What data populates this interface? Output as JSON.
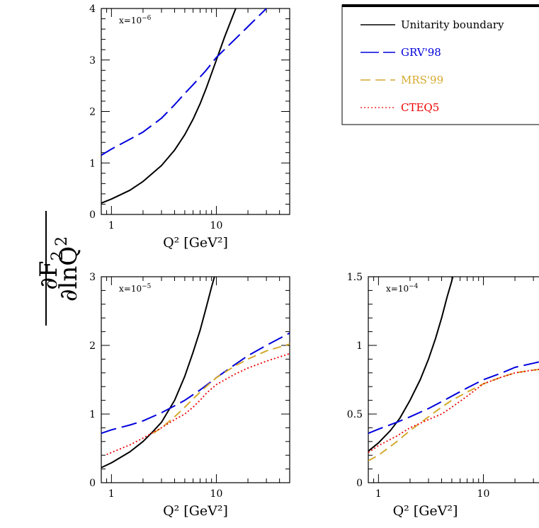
{
  "ylabel": {
    "numerator": "∂F",
    "numerator_sub": "2",
    "denominator": "∂lnQ",
    "denominator_sup": "2"
  },
  "legend": {
    "items": [
      {
        "label": "Unitarity boundary",
        "color": "#000000",
        "style": "solid"
      },
      {
        "label": "GRV'98",
        "color": "#0000dd",
        "style": "longdash"
      },
      {
        "label": "MRS'99",
        "color": "#d4aa30",
        "style": "dash"
      },
      {
        "label": "CTEQ5",
        "color": "#ee0000",
        "style": "dot"
      }
    ]
  },
  "chart_data": [
    {
      "type": "line",
      "panel_label": "x=10",
      "panel_label_exp": "−6",
      "xlabel": "Q² [GeV²]",
      "xscale": "log",
      "xlim": [
        0.8,
        50
      ],
      "ylim": [
        0,
        4
      ],
      "xticks": [
        {
          "v": 1,
          "label": "1"
        },
        {
          "v": 10,
          "label": "10"
        }
      ],
      "yticks": [
        {
          "v": 0,
          "label": "0"
        },
        {
          "v": 1,
          "label": "1"
        },
        {
          "v": 2,
          "label": "2"
        },
        {
          "v": 3,
          "label": "3"
        },
        {
          "v": 4,
          "label": "4"
        }
      ],
      "series": [
        {
          "name": "Unitarity boundary",
          "x": [
            0.8,
            1.0,
            1.5,
            2.0,
            3.0,
            4.0,
            5.0,
            6.0,
            7.0,
            8.0,
            10.0,
            12.0,
            14.0,
            16.0,
            18.0
          ],
          "y": [
            0.22,
            0.3,
            0.47,
            0.64,
            0.95,
            1.25,
            1.55,
            1.85,
            2.15,
            2.45,
            3.0,
            3.45,
            3.8,
            4.1,
            4.4
          ]
        },
        {
          "name": "GRV'98",
          "x": [
            0.8,
            1.0,
            1.5,
            2.0,
            3.0,
            4.0,
            5.0,
            6.0,
            8.0,
            10.0,
            15.0,
            20.0,
            30.0
          ],
          "y": [
            1.15,
            1.27,
            1.46,
            1.6,
            1.87,
            2.13,
            2.35,
            2.52,
            2.8,
            3.05,
            3.4,
            3.65,
            4.0
          ]
        }
      ]
    },
    {
      "type": "line",
      "panel_label": "x=10",
      "panel_label_exp": "−5",
      "xlabel": "Q² [GeV²]",
      "xscale": "log",
      "xlim": [
        0.8,
        50
      ],
      "ylim": [
        0,
        3
      ],
      "xticks": [
        {
          "v": 1,
          "label": "1"
        },
        {
          "v": 10,
          "label": "10"
        }
      ],
      "yticks": [
        {
          "v": 0,
          "label": "0"
        },
        {
          "v": 1,
          "label": "1"
        },
        {
          "v": 2,
          "label": "2"
        },
        {
          "v": 3,
          "label": "3"
        }
      ],
      "series": [
        {
          "name": "Unitarity boundary",
          "x": [
            0.8,
            1.0,
            1.5,
            2.0,
            2.5,
            3.0,
            4.0,
            5.0,
            6.0,
            7.0,
            8.0,
            9.0,
            10.0
          ],
          "y": [
            0.22,
            0.29,
            0.45,
            0.6,
            0.75,
            0.88,
            1.2,
            1.55,
            1.9,
            2.22,
            2.55,
            2.85,
            3.1
          ]
        },
        {
          "name": "GRV'98",
          "x": [
            0.8,
            1.0,
            1.5,
            2.0,
            3.0,
            4.0,
            5.0,
            7.0,
            10.0,
            15.0,
            20.0,
            30.0,
            50.0
          ],
          "y": [
            0.72,
            0.77,
            0.84,
            0.9,
            1.02,
            1.12,
            1.2,
            1.35,
            1.53,
            1.72,
            1.85,
            2.0,
            2.18
          ]
        },
        {
          "name": "MRS'99",
          "x": [
            2.5,
            3.0,
            4.0,
            5.0,
            6.0,
            7.0,
            8.0,
            10.0,
            15.0,
            20.0,
            30.0,
            50.0
          ],
          "y": [
            0.72,
            0.8,
            0.96,
            1.1,
            1.22,
            1.32,
            1.4,
            1.53,
            1.7,
            1.8,
            1.92,
            2.02
          ]
        },
        {
          "name": "CTEQ5",
          "x": [
            0.9,
            1.0,
            1.5,
            2.0,
            3.0,
            4.0,
            5.0,
            6.0,
            7.0,
            8.0,
            10.0,
            15.0,
            20.0,
            30.0,
            50.0
          ],
          "y": [
            0.41,
            0.44,
            0.55,
            0.65,
            0.8,
            0.92,
            1.0,
            1.1,
            1.2,
            1.3,
            1.43,
            1.58,
            1.67,
            1.77,
            1.88
          ]
        }
      ]
    },
    {
      "type": "line",
      "panel_label": "x=10",
      "panel_label_exp": "−4",
      "xlabel": "Q² [GeV²]",
      "xscale": "log",
      "xlim": [
        0.8,
        50
      ],
      "ylim": [
        0,
        1.5
      ],
      "xticks": [
        {
          "v": 1,
          "label": "1"
        },
        {
          "v": 10,
          "label": "10"
        }
      ],
      "yticks": [
        {
          "v": 0,
          "label": "0"
        },
        {
          "v": 0.5,
          "label": "0.5"
        },
        {
          "v": 1,
          "label": "1"
        },
        {
          "v": 1.5,
          "label": "1.5"
        }
      ],
      "series": [
        {
          "name": "Unitarity boundary",
          "x": [
            0.8,
            1.0,
            1.3,
            1.6,
            2.0,
            2.5,
            3.0,
            3.5,
            4.0,
            4.5,
            5.0,
            5.3
          ],
          "y": [
            0.23,
            0.29,
            0.38,
            0.47,
            0.6,
            0.75,
            0.9,
            1.05,
            1.2,
            1.35,
            1.47,
            1.55
          ]
        },
        {
          "name": "GRV'98",
          "x": [
            0.8,
            1.0,
            1.5,
            2.0,
            3.0,
            4.0,
            5.0,
            7.0,
            10.0,
            15.0,
            20.0,
            30.0,
            50.0
          ],
          "y": [
            0.36,
            0.39,
            0.44,
            0.48,
            0.54,
            0.59,
            0.63,
            0.69,
            0.75,
            0.8,
            0.84,
            0.87,
            0.91
          ]
        },
        {
          "name": "MRS'99",
          "x": [
            0.8,
            1.0,
            1.5,
            2.0,
            3.0,
            4.0,
            5.0,
            7.0,
            10.0,
            15.0,
            20.0,
            30.0,
            50.0
          ],
          "y": [
            0.16,
            0.2,
            0.3,
            0.38,
            0.48,
            0.55,
            0.6,
            0.66,
            0.72,
            0.77,
            0.8,
            0.82,
            0.84
          ]
        },
        {
          "name": "CTEQ5",
          "x": [
            0.8,
            1.0,
            1.5,
            2.0,
            3.0,
            4.0,
            5.0,
            7.0,
            10.0,
            15.0,
            20.0,
            30.0,
            50.0
          ],
          "y": [
            0.22,
            0.27,
            0.34,
            0.4,
            0.46,
            0.5,
            0.55,
            0.63,
            0.72,
            0.77,
            0.8,
            0.82,
            0.84
          ]
        }
      ]
    }
  ]
}
